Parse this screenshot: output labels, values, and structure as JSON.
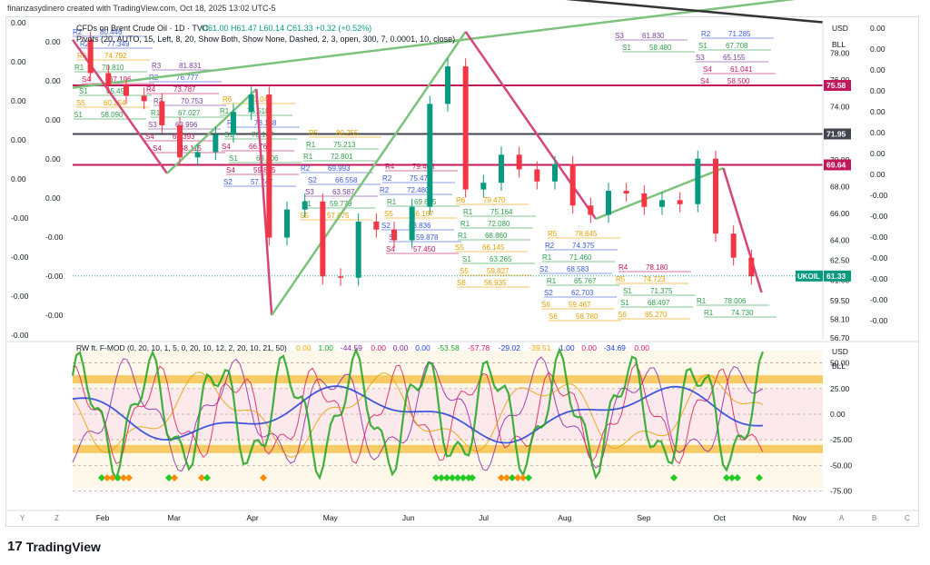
{
  "header": {
    "credit": "finanzasydinero created with TradingView.com, Oct 18, 2025 13:02 UTC-5"
  },
  "main": {
    "title": "CFDs on Brent Crude Oil · 1D · TVC",
    "ohlc": "O61.00 H61.47 L60.14 C61.33 +0.32 (+0.52%)",
    "pivots": "Pivots (20, AUTO, 15, Left, 8, 20, Show Both, Show None, Dashed, 2, 3, open, 300, 7, 0.0001, 10, close)"
  },
  "osc": {
    "title": "RW ft. F-MOD (0, 20, 10, 1, 5, 0, 20, 10, 12, 2, 20, 10, 21, 50)",
    "values": [
      {
        "text": "0.00",
        "color": "#f0a500"
      },
      {
        "text": "1.00",
        "color": "#1fa51f"
      },
      {
        "text": "-44.59",
        "color": "#8e24aa"
      },
      {
        "text": "0.00",
        "color": "#d81b60"
      },
      {
        "text": "0.00",
        "color": "#8e24aa"
      },
      {
        "text": "0.00",
        "color": "#1e3fd9"
      },
      {
        "text": "-53.58",
        "color": "#1fa51f"
      },
      {
        "text": "-57.78",
        "color": "#d81b60"
      },
      {
        "text": "-29.02",
        "color": "#1e3fd9"
      },
      {
        "text": "-39.51",
        "color": "#f0a500"
      },
      {
        "text": "1.00",
        "color": "#1e3fd9"
      },
      {
        "text": "0.00",
        "color": "#d81b60"
      },
      {
        "text": "-34.69",
        "color": "#1e3fd9"
      },
      {
        "text": "0.00",
        "color": "#d81b60"
      }
    ],
    "axis": [
      "50.00",
      "25.00",
      "0.00",
      "-25.00",
      "-50.00",
      "-75.00"
    ],
    "currency": "USD",
    "unit": "BLL"
  },
  "axes": {
    "right_main": [
      "78.00",
      "76.00",
      "74.00",
      "72.00",
      "70.00",
      "68.00",
      "66.00",
      "64.00",
      "62.50",
      "61.00",
      "59.50",
      "58.10",
      "56.70"
    ],
    "right_outer": [
      "0.00",
      "0.00",
      "0.00",
      "0.00",
      "0.00",
      "0.00",
      "0.00",
      "0.00",
      "-0.00",
      "-0.00",
      "-0.00",
      "-0.00",
      "-0.00",
      "-0.00",
      "-0.00"
    ],
    "left_ticks": [
      "0.00",
      "0.00",
      "0.00",
      "0.00",
      "0.00",
      "0.00",
      "0.00",
      "0.00",
      "0.00",
      "0.00",
      "-0.00",
      "-0.00",
      "-0.00",
      "-0.00",
      "-0.00",
      "-0.00",
      "-0.00"
    ],
    "currency": "USD",
    "unit": "BLL",
    "badges": [
      {
        "text": "75.58",
        "color": "#c2185b"
      },
      {
        "text": "71.95",
        "color": "#434651"
      },
      {
        "text": "69.64",
        "color": "#c2185b"
      },
      {
        "text": "UKOIL",
        "color": "#089981"
      },
      {
        "text": "61.33",
        "color": "#089981"
      }
    ]
  },
  "time_axis": {
    "months": [
      "Feb",
      "Mar",
      "Apr",
      "May",
      "Jun",
      "Jul",
      "Aug",
      "Sep",
      "Oct",
      "Nov"
    ],
    "corner": "Y",
    "zoom": "Z",
    "right": [
      "A",
      "B",
      "C"
    ]
  },
  "pivot_labels": [
    {
      "t": "R2",
      "c": "#3b5bdb"
    },
    {
      "t": "80.446",
      "c": "#3b5bdb"
    },
    {
      "t": "R3",
      "c": "#7b3fa0"
    },
    {
      "t": "81.831",
      "c": "#7b3fa0"
    },
    {
      "t": "R6",
      "c": "#e6a000"
    },
    {
      "t": "81.042",
      "c": "#e6a000"
    },
    {
      "t": "R5",
      "c": "#e6a000"
    },
    {
      "t": "80.255",
      "c": "#e6a000"
    },
    {
      "t": "R4",
      "c": "#c2185b"
    },
    {
      "t": "79.468",
      "c": "#c2185b"
    },
    {
      "t": "R6",
      "c": "#e6a000"
    },
    {
      "t": "79.470",
      "c": "#e6a000"
    },
    {
      "t": "R5",
      "c": "#e6a000"
    },
    {
      "t": "78.645",
      "c": "#e6a000"
    },
    {
      "t": "R4",
      "c": "#c2185b"
    },
    {
      "t": "78.180",
      "c": "#c2185b"
    },
    {
      "t": "R1",
      "c": "#2e9e4a"
    },
    {
      "t": "78.006",
      "c": "#2e9e4a"
    },
    {
      "t": "R2",
      "c": "#3b5bdb"
    },
    {
      "t": "77.349",
      "c": "#3b5bdb"
    },
    {
      "t": "R2",
      "c": "#3b5bdb"
    },
    {
      "t": "76.777",
      "c": "#3b5bdb"
    },
    {
      "t": "R1",
      "c": "#2e9e4a"
    },
    {
      "t": "76.518",
      "c": "#2e9e4a"
    },
    {
      "t": "R1",
      "c": "#2e9e4a"
    },
    {
      "t": "75.213",
      "c": "#2e9e4a"
    },
    {
      "t": "R2",
      "c": "#3b5bdb"
    },
    {
      "t": "75.470",
      "c": "#3b5bdb"
    },
    {
      "t": "R1",
      "c": "#2e9e4a"
    },
    {
      "t": "75.164",
      "c": "#2e9e4a"
    },
    {
      "t": "R2",
      "c": "#3b5bdb"
    },
    {
      "t": "74.375",
      "c": "#3b5bdb"
    },
    {
      "t": "R5",
      "c": "#e6a000"
    },
    {
      "t": "74.723",
      "c": "#e6a000"
    },
    {
      "t": "R1",
      "c": "#2e9e4a"
    },
    {
      "t": "74.730",
      "c": "#2e9e4a"
    },
    {
      "t": "R6",
      "c": "#e6a000"
    },
    {
      "t": "74.792",
      "c": "#e6a000"
    },
    {
      "t": "R4",
      "c": "#c2185b"
    },
    {
      "t": "73.787",
      "c": "#c2185b"
    },
    {
      "t": "R2",
      "c": "#3b5bdb"
    },
    {
      "t": "73.188",
      "c": "#3b5bdb"
    },
    {
      "t": "R1",
      "c": "#2e9e4a"
    },
    {
      "t": "72.801",
      "c": "#2e9e4a"
    },
    {
      "t": "R2",
      "c": "#3b5bdb"
    },
    {
      "t": "72.480",
      "c": "#3b5bdb"
    },
    {
      "t": "R1",
      "c": "#2e9e4a"
    },
    {
      "t": "72.080",
      "c": "#2e9e4a"
    },
    {
      "t": "R1",
      "c": "#2e9e4a"
    },
    {
      "t": "71.460",
      "c": "#2e9e4a"
    },
    {
      "t": "S1",
      "c": "#2e9e4a"
    },
    {
      "t": "71.375",
      "c": "#2e9e4a"
    },
    {
      "t": "R2",
      "c": "#3b5bdb"
    },
    {
      "t": "71.285",
      "c": "#3b5bdb"
    },
    {
      "t": "R1",
      "c": "#2e9e4a"
    },
    {
      "t": "70.810",
      "c": "#2e9e4a"
    },
    {
      "t": "R3",
      "c": "#7b3fa0"
    },
    {
      "t": "70.753",
      "c": "#7b3fa0"
    },
    {
      "t": "S1",
      "c": "#2e9e4a"
    },
    {
      "t": "70.147",
      "c": "#2e9e4a"
    },
    {
      "t": "R2",
      "c": "#3b5bdb"
    },
    {
      "t": "69.993",
      "c": "#3b5bdb"
    },
    {
      "t": "R1",
      "c": "#2e9e4a"
    },
    {
      "t": "69.665",
      "c": "#2e9e4a"
    },
    {
      "t": "R1",
      "c": "#2e9e4a"
    },
    {
      "t": "68.860",
      "c": "#2e9e4a"
    },
    {
      "t": "S2",
      "c": "#3b5bdb"
    },
    {
      "t": "68.583",
      "c": "#3b5bdb"
    },
    {
      "t": "S1",
      "c": "#2e9e4a"
    },
    {
      "t": "68.497",
      "c": "#2e9e4a"
    },
    {
      "t": "S1",
      "c": "#2e9e4a"
    },
    {
      "t": "67.708",
      "c": "#2e9e4a"
    },
    {
      "t": "S4",
      "c": "#c2185b"
    },
    {
      "t": "67.106",
      "c": "#c2185b"
    },
    {
      "t": "R1",
      "c": "#2e9e4a"
    },
    {
      "t": "67.027",
      "c": "#2e9e4a"
    },
    {
      "t": "S4",
      "c": "#c2185b"
    },
    {
      "t": "66.769",
      "c": "#c2185b"
    },
    {
      "t": "S2",
      "c": "#3b5bdb"
    },
    {
      "t": "66.558",
      "c": "#3b5bdb"
    },
    {
      "t": "S5",
      "c": "#e6a000"
    },
    {
      "t": "66.187",
      "c": "#e6a000"
    },
    {
      "t": "S5",
      "c": "#e6a000"
    },
    {
      "t": "66.145",
      "c": "#e6a000"
    },
    {
      "t": "R1",
      "c": "#2e9e4a"
    },
    {
      "t": "65.767",
      "c": "#2e9e4a"
    },
    {
      "t": "S6",
      "c": "#e6a000"
    },
    {
      "t": "65.270",
      "c": "#e6a000"
    },
    {
      "t": "S3",
      "c": "#7b3fa0"
    },
    {
      "t": "65.155",
      "c": "#7b3fa0"
    },
    {
      "t": "S1",
      "c": "#2e9e4a"
    },
    {
      "t": "65.490",
      "c": "#2e9e4a"
    },
    {
      "t": "S3",
      "c": "#7b3fa0"
    },
    {
      "t": "63.996",
      "c": "#7b3fa0"
    },
    {
      "t": "S1",
      "c": "#2e9e4a"
    },
    {
      "t": "63.806",
      "c": "#2e9e4a"
    },
    {
      "t": "S3",
      "c": "#7b3fa0"
    },
    {
      "t": "63.587",
      "c": "#7b3fa0"
    },
    {
      "t": "S2",
      "c": "#3b5bdb"
    },
    {
      "t": "63.836",
      "c": "#3b5bdb"
    },
    {
      "t": "S1",
      "c": "#2e9e4a"
    },
    {
      "t": "63.265",
      "c": "#2e9e4a"
    },
    {
      "t": "S2",
      "c": "#3b5bdb"
    },
    {
      "t": "62.703",
      "c": "#3b5bdb"
    },
    {
      "t": "S3",
      "c": "#7b3fa0"
    },
    {
      "t": "61.830",
      "c": "#7b3fa0"
    },
    {
      "t": "S4",
      "c": "#c2185b"
    },
    {
      "t": "61.041",
      "c": "#c2185b"
    },
    {
      "t": "S5",
      "c": "#e6a000"
    },
    {
      "t": "60.254",
      "c": "#e6a000"
    },
    {
      "t": "S4",
      "c": "#c2185b"
    },
    {
      "t": "60.393",
      "c": "#c2185b"
    },
    {
      "t": "S4",
      "c": "#c2185b"
    },
    {
      "t": "59.865",
      "c": "#c2185b"
    },
    {
      "t": "S1",
      "c": "#2e9e4a"
    },
    {
      "t": "59.779",
      "c": "#2e9e4a"
    },
    {
      "t": "S2",
      "c": "#3b5bdb"
    },
    {
      "t": "59.878",
      "c": "#3b5bdb"
    },
    {
      "t": "S5",
      "c": "#e6a000"
    },
    {
      "t": "59.827",
      "c": "#e6a000"
    },
    {
      "t": "S6",
      "c": "#e6a000"
    },
    {
      "t": "59.467",
      "c": "#e6a000"
    },
    {
      "t": "S1",
      "c": "#2e9e4a"
    },
    {
      "t": "58.480",
      "c": "#2e9e4a"
    },
    {
      "t": "S4",
      "c": "#c2185b"
    },
    {
      "t": "58.500",
      "c": "#c2185b"
    },
    {
      "t": "S1",
      "c": "#2e9e4a"
    },
    {
      "t": "58.090",
      "c": "#2e9e4a"
    },
    {
      "t": "S4",
      "c": "#c2185b"
    },
    {
      "t": "58.115",
      "c": "#c2185b"
    },
    {
      "t": "S2",
      "c": "#3b5bdb"
    },
    {
      "t": "57.747",
      "c": "#3b5bdb"
    },
    {
      "t": "S5",
      "c": "#e6a000"
    },
    {
      "t": "57.675",
      "c": "#e6a000"
    },
    {
      "t": "S4",
      "c": "#c2185b"
    },
    {
      "t": "57.450",
      "c": "#c2185b"
    },
    {
      "t": "S6",
      "c": "#e6a000"
    },
    {
      "t": "56.935",
      "c": "#e6a000"
    },
    {
      "t": "S6",
      "c": "#e6a000"
    },
    {
      "t": "58.780",
      "c": "#e6a000"
    }
  ],
  "brand": {
    "name": "TradingView",
    "mark": "17"
  },
  "chart_data": {
    "type": "candlestick",
    "symbol": "UKOIL",
    "x_range": [
      "Jan 20 2025",
      "Nov 10 2025"
    ],
    "price_range": [
      56.7,
      80.2
    ],
    "pivot_points": [
      {
        "x": "Jan 20",
        "y": 79.0
      },
      {
        "x": "Feb 26",
        "y": 69.0
      },
      {
        "x": "Apr 2",
        "y": 75.3
      },
      {
        "x": "Apr 8",
        "y": 58.4
      },
      {
        "x": "Jun 23",
        "y": 79.6
      },
      {
        "x": "Aug 13",
        "y": 65.6
      },
      {
        "x": "Oct 2",
        "y": 69.4
      },
      {
        "x": "Oct 17",
        "y": 60.1
      }
    ],
    "close_series": [
      {
        "x": "Jan 20",
        "y": 79.0
      },
      {
        "x": "Jan 27",
        "y": 76.5
      },
      {
        "x": "Feb 3",
        "y": 75.6
      },
      {
        "x": "Feb 10",
        "y": 74.8
      },
      {
        "x": "Feb 17",
        "y": 74.4
      },
      {
        "x": "Feb 24",
        "y": 72.6
      },
      {
        "x": "Mar 3",
        "y": 70.2
      },
      {
        "x": "Mar 10",
        "y": 70.6
      },
      {
        "x": "Mar 17",
        "y": 71.9
      },
      {
        "x": "Mar 24",
        "y": 73.6
      },
      {
        "x": "Mar 31",
        "y": 74.9
      },
      {
        "x": "Apr 7",
        "y": 64.2
      },
      {
        "x": "Apr 14",
        "y": 66.3
      },
      {
        "x": "Apr 21",
        "y": 66.9
      },
      {
        "x": "Apr 28",
        "y": 61.3
      },
      {
        "x": "May 5",
        "y": 61.2
      },
      {
        "x": "May 12",
        "y": 65.4
      },
      {
        "x": "May 19",
        "y": 64.8
      },
      {
        "x": "May 26",
        "y": 64.0
      },
      {
        "x": "Jun 2",
        "y": 66.5
      },
      {
        "x": "Jun 9",
        "y": 74.2
      },
      {
        "x": "Jun 16",
        "y": 77.0
      },
      {
        "x": "Jun 23",
        "y": 67.8
      },
      {
        "x": "Jun 30",
        "y": 68.3
      },
      {
        "x": "Jul 7",
        "y": 70.4
      },
      {
        "x": "Jul 14",
        "y": 69.3
      },
      {
        "x": "Jul 21",
        "y": 68.4
      },
      {
        "x": "Jul 28",
        "y": 69.7
      },
      {
        "x": "Aug 4",
        "y": 66.6
      },
      {
        "x": "Aug 11",
        "y": 65.9
      },
      {
        "x": "Aug 18",
        "y": 67.7
      },
      {
        "x": "Aug 25",
        "y": 67.5
      },
      {
        "x": "Sep 1",
        "y": 66.5
      },
      {
        "x": "Sep 8",
        "y": 67.0
      },
      {
        "x": "Sep 15",
        "y": 66.7
      },
      {
        "x": "Sep 22",
        "y": 70.1
      },
      {
        "x": "Sep 29",
        "y": 64.5
      },
      {
        "x": "Oct 6",
        "y": 62.7
      },
      {
        "x": "Oct 13",
        "y": 61.3
      }
    ],
    "horizontal_levels": [
      75.58,
      71.95,
      69.64
    ],
    "trend_lines": [
      {
        "name": "long-term up",
        "from": {
          "x": "Jan 20",
          "y": 75.4
        },
        "to": {
          "x": "Nov 10",
          "y": 82.3
        },
        "color": "#7cc27c"
      },
      {
        "name": "down black",
        "from": {
          "x": "Jul 12",
          "y": 82.4
        },
        "to": {
          "x": "Nov 10",
          "y": 80.3
        },
        "color": "#333333"
      }
    ],
    "oscillator": {
      "levels": [
        50,
        25,
        0,
        -25,
        -50,
        -75
      ],
      "bands": [
        {
          "from": 30,
          "to": 38,
          "color": "#f6c34e"
        },
        {
          "from": -38,
          "to": -30,
          "color": "#f6c34e"
        }
      ]
    }
  }
}
